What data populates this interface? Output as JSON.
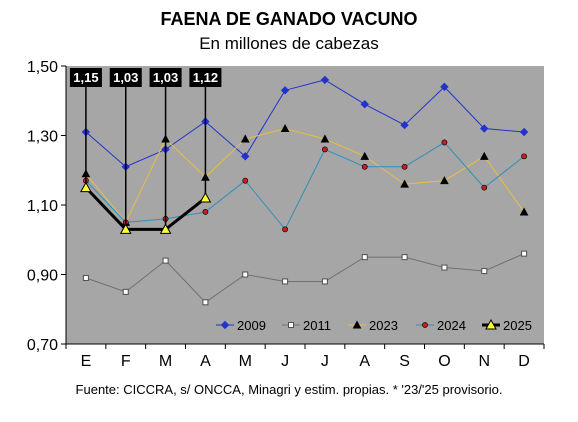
{
  "chart_data": {
    "type": "line",
    "title": "FAENA DE GANADO VACUNO",
    "subtitle": "En millones de cabezas",
    "source": "Fuente: CICCRA, s/ ONCCA, Minagri y estim. propias. * '23/'25 provisorio.",
    "categories": [
      "E",
      "F",
      "M",
      "A",
      "M",
      "J",
      "J",
      "A",
      "S",
      "O",
      "N",
      "D"
    ],
    "ylim": [
      0.7,
      1.5
    ],
    "yticks": [
      "0,70",
      "0,90",
      "1,10",
      "1,30",
      "1,50"
    ],
    "ytick_values": [
      0.7,
      0.9,
      1.1,
      1.3,
      1.5
    ],
    "grid": false,
    "legend_position": "bottom-right",
    "series": [
      {
        "name": "2009",
        "color": "#2233cc",
        "marker": "diamond",
        "values": [
          1.31,
          1.21,
          1.26,
          1.34,
          1.24,
          1.43,
          1.46,
          1.39,
          1.33,
          1.44,
          1.32,
          1.31
        ]
      },
      {
        "name": "2011",
        "color": "#707070",
        "marker": "square",
        "values": [
          0.89,
          0.85,
          0.94,
          0.82,
          0.9,
          0.88,
          0.88,
          0.95,
          0.95,
          0.92,
          0.91,
          0.96
        ]
      },
      {
        "name": "2023",
        "color": "#e8c040",
        "marker": "triangle",
        "values": [
          1.19,
          1.05,
          1.29,
          1.18,
          1.29,
          1.32,
          1.29,
          1.24,
          1.16,
          1.17,
          1.24,
          1.08
        ]
      },
      {
        "name": "2024",
        "color": "#2e8fbf",
        "marker": "circle",
        "values": [
          1.17,
          1.05,
          1.06,
          1.08,
          1.17,
          1.03,
          1.26,
          1.21,
          1.21,
          1.28,
          1.15,
          1.24
        ]
      },
      {
        "name": "2025",
        "color": "#000000",
        "marker": "triangle-yellow",
        "values": [
          1.15,
          1.03,
          1.03,
          1.12,
          null,
          null,
          null,
          null,
          null,
          null,
          null,
          null
        ]
      }
    ],
    "annotations": [
      "1,15",
      "1,03",
      "1,03",
      "1,12"
    ]
  }
}
